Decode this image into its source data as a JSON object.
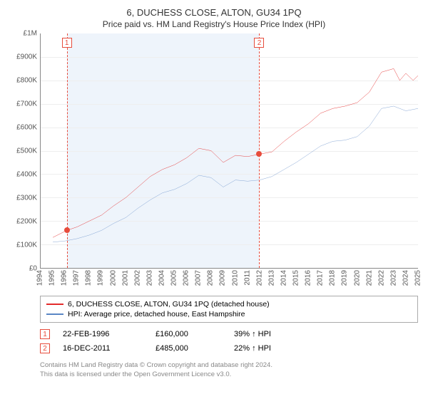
{
  "title": "6, DUCHESS CLOSE, ALTON, GU34 1PQ",
  "subtitle": "Price paid vs. HM Land Registry's House Price Index (HPI)",
  "chart": {
    "type": "line",
    "background_color": "#ffffff",
    "grid_color": "#eeeeee",
    "axis_color": "#888888",
    "highlight_band_color": "#eef4fb",
    "label_fontsize": 10,
    "title_fontsize": 13,
    "y": {
      "min": 0,
      "max": 1000000,
      "ticks": [
        {
          "v": 0,
          "label": "£0"
        },
        {
          "v": 100000,
          "label": "£100K"
        },
        {
          "v": 200000,
          "label": "£200K"
        },
        {
          "v": 300000,
          "label": "£300K"
        },
        {
          "v": 400000,
          "label": "£400K"
        },
        {
          "v": 500000,
          "label": "£500K"
        },
        {
          "v": 600000,
          "label": "£600K"
        },
        {
          "v": 700000,
          "label": "£700K"
        },
        {
          "v": 800000,
          "label": "£800K"
        },
        {
          "v": 900000,
          "label": "£900K"
        },
        {
          "v": 1000000,
          "label": "£1M"
        }
      ]
    },
    "x": {
      "min": 1994,
      "max": 2025,
      "ticks": [
        1994,
        1995,
        1996,
        1997,
        1998,
        1999,
        2000,
        2001,
        2002,
        2003,
        2004,
        2005,
        2006,
        2007,
        2008,
        2009,
        2010,
        2011,
        2012,
        2013,
        2014,
        2015,
        2016,
        2017,
        2018,
        2019,
        2020,
        2021,
        2022,
        2023,
        2024,
        2025
      ]
    },
    "series": [
      {
        "name": "price_paid",
        "label": "6, DUCHESS CLOSE, ALTON, GU34 1PQ (detached house)",
        "color": "#e32b2b",
        "line_width": 1.5,
        "data": [
          [
            1995.0,
            130000
          ],
          [
            1996.15,
            160000
          ],
          [
            1997.0,
            175000
          ],
          [
            1998.0,
            200000
          ],
          [
            1999.0,
            225000
          ],
          [
            2000.0,
            265000
          ],
          [
            2001.0,
            300000
          ],
          [
            2002.0,
            345000
          ],
          [
            2003.0,
            390000
          ],
          [
            2004.0,
            420000
          ],
          [
            2005.0,
            440000
          ],
          [
            2006.0,
            470000
          ],
          [
            2007.0,
            510000
          ],
          [
            2008.0,
            500000
          ],
          [
            2009.0,
            450000
          ],
          [
            2010.0,
            480000
          ],
          [
            2011.0,
            475000
          ],
          [
            2011.96,
            485000
          ],
          [
            2013.0,
            495000
          ],
          [
            2014.0,
            540000
          ],
          [
            2015.0,
            580000
          ],
          [
            2016.0,
            615000
          ],
          [
            2017.0,
            660000
          ],
          [
            2018.0,
            680000
          ],
          [
            2019.0,
            690000
          ],
          [
            2020.0,
            705000
          ],
          [
            2021.0,
            750000
          ],
          [
            2022.0,
            835000
          ],
          [
            2023.0,
            850000
          ],
          [
            2023.5,
            800000
          ],
          [
            2024.0,
            830000
          ],
          [
            2024.6,
            800000
          ],
          [
            2025.0,
            820000
          ]
        ]
      },
      {
        "name": "hpi",
        "label": "HPI: Average price, detached house, East Hampshire",
        "color": "#5a86c5",
        "line_width": 1.2,
        "data": [
          [
            1995.0,
            110000
          ],
          [
            1996.0,
            115000
          ],
          [
            1997.0,
            125000
          ],
          [
            1998.0,
            140000
          ],
          [
            1999.0,
            160000
          ],
          [
            2000.0,
            190000
          ],
          [
            2001.0,
            215000
          ],
          [
            2002.0,
            255000
          ],
          [
            2003.0,
            290000
          ],
          [
            2004.0,
            320000
          ],
          [
            2005.0,
            335000
          ],
          [
            2006.0,
            360000
          ],
          [
            2007.0,
            395000
          ],
          [
            2008.0,
            385000
          ],
          [
            2009.0,
            345000
          ],
          [
            2010.0,
            375000
          ],
          [
            2011.0,
            370000
          ],
          [
            2012.0,
            375000
          ],
          [
            2013.0,
            390000
          ],
          [
            2014.0,
            420000
          ],
          [
            2015.0,
            450000
          ],
          [
            2016.0,
            485000
          ],
          [
            2017.0,
            520000
          ],
          [
            2018.0,
            540000
          ],
          [
            2019.0,
            545000
          ],
          [
            2020.0,
            560000
          ],
          [
            2021.0,
            605000
          ],
          [
            2022.0,
            680000
          ],
          [
            2023.0,
            690000
          ],
          [
            2024.0,
            670000
          ],
          [
            2025.0,
            680000
          ]
        ]
      }
    ],
    "sale_markers": [
      {
        "n": "1",
        "year": 1996.15,
        "value": 160000
      },
      {
        "n": "2",
        "year": 2011.96,
        "value": 485000
      }
    ],
    "highlight_band": {
      "start": 1996.15,
      "end": 2011.96
    }
  },
  "legend": {
    "items": [
      {
        "color": "#e32b2b",
        "label": "6, DUCHESS CLOSE, ALTON, GU34 1PQ (detached house)"
      },
      {
        "color": "#5a86c5",
        "label": "HPI: Average price, detached house, East Hampshire"
      }
    ]
  },
  "sales": [
    {
      "n": "1",
      "date": "22-FEB-1996",
      "price": "£160,000",
      "pct": "39% ↑ HPI"
    },
    {
      "n": "2",
      "date": "16-DEC-2011",
      "price": "£485,000",
      "pct": "22% ↑ HPI"
    }
  ],
  "footer": {
    "line1": "Contains HM Land Registry data © Crown copyright and database right 2024.",
    "line2": "This data is licensed under the Open Government Licence v3.0."
  }
}
